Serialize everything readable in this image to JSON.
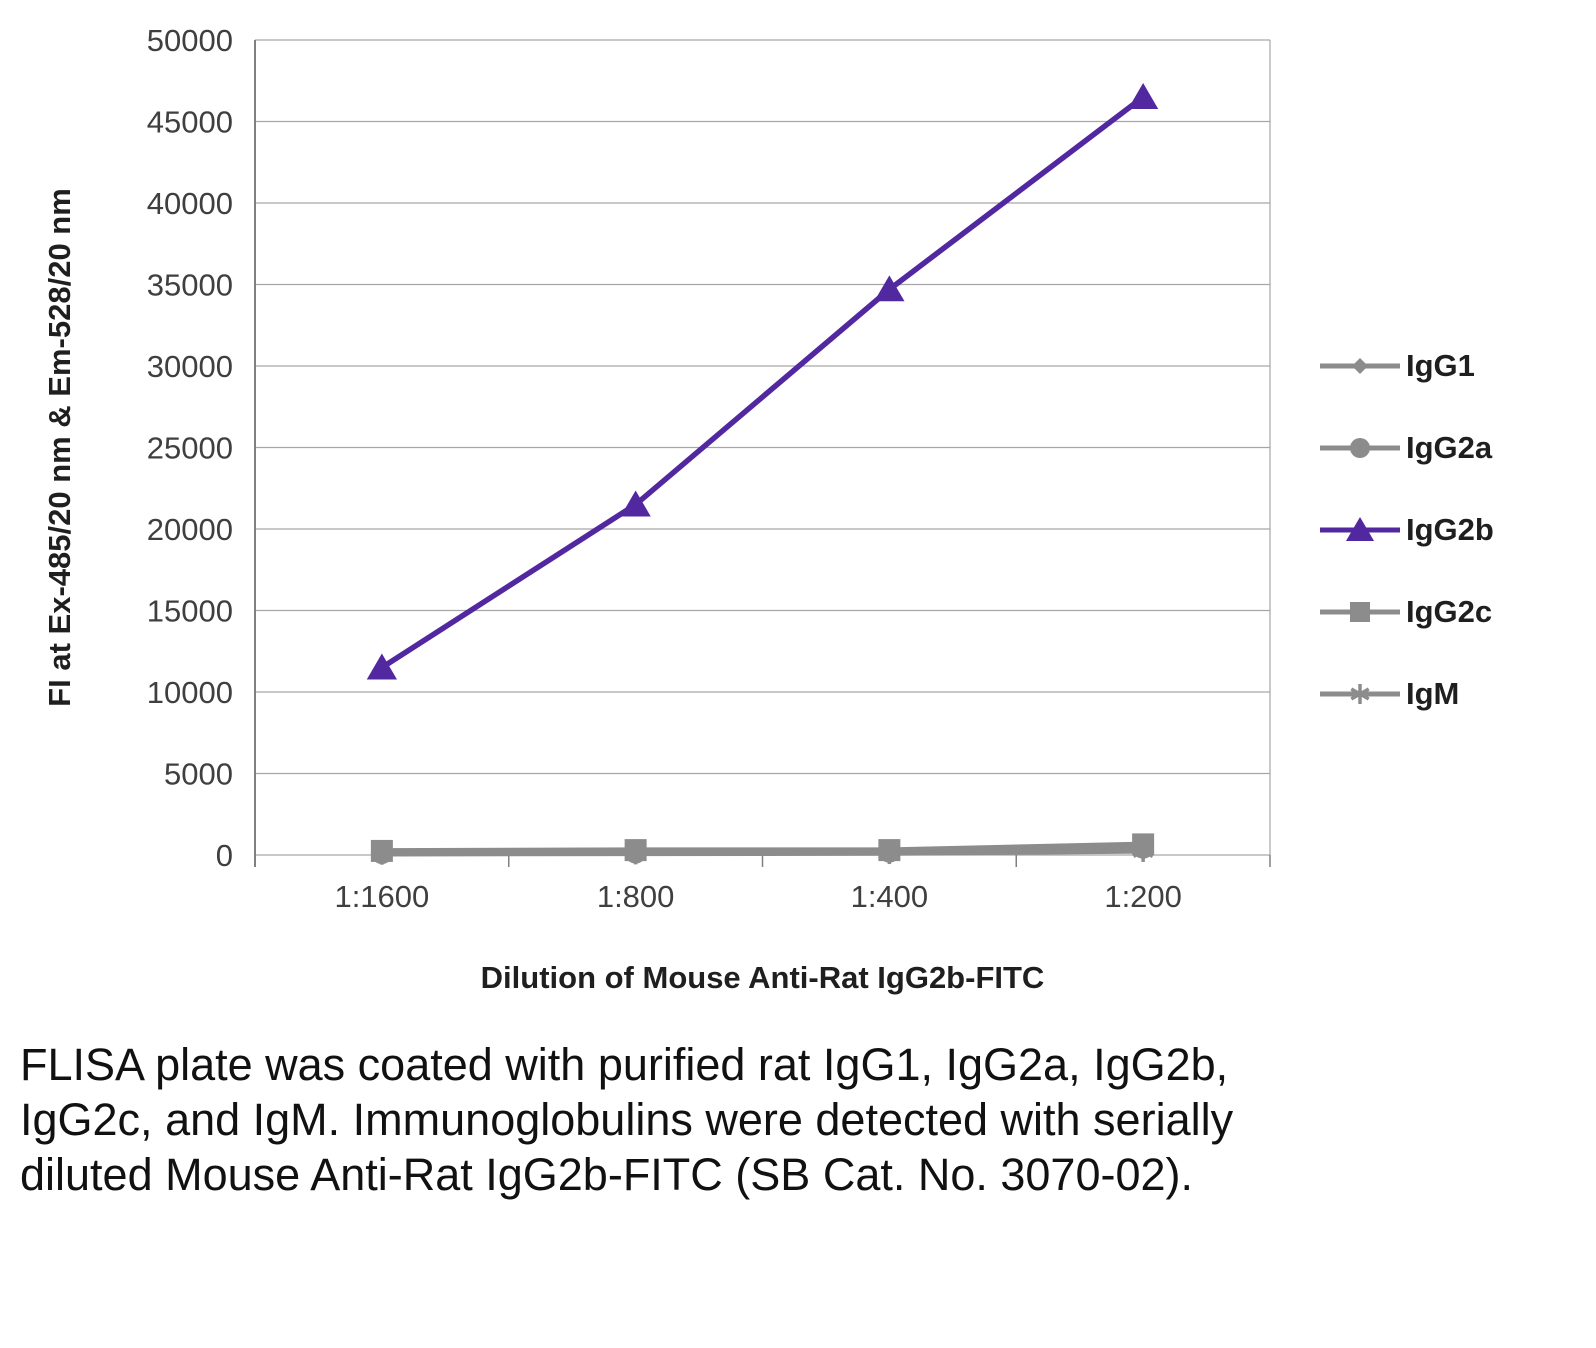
{
  "chart_data": {
    "type": "line",
    "categories": [
      "1:1600",
      "1:800",
      "1:400",
      "1:200"
    ],
    "series": [
      {
        "name": "IgG1",
        "marker": "diamond",
        "color": "#8c8c8c",
        "values": [
          100,
          120,
          150,
          350
        ]
      },
      {
        "name": "IgG2a",
        "marker": "circle",
        "color": "#8c8c8c",
        "values": [
          120,
          150,
          200,
          450
        ]
      },
      {
        "name": "IgG2b",
        "marker": "triangle",
        "color": "#5228a0",
        "values": [
          11500,
          21500,
          34700,
          46500
        ]
      },
      {
        "name": "IgG2c",
        "marker": "square",
        "color": "#8c8c8c",
        "values": [
          250,
          300,
          300,
          650
        ]
      },
      {
        "name": "IgM",
        "marker": "star",
        "color": "#8c8c8c",
        "values": [
          80,
          100,
          120,
          250
        ]
      }
    ],
    "title": "",
    "xlabel": "Dilution of Mouse Anti-Rat IgG2b-FITC",
    "ylabel": "FI at Ex-485/20 nm & Em-528/20 nm",
    "ylim": [
      0,
      50000
    ],
    "ytick_step": 5000,
    "grid": true,
    "legend_position": "right",
    "gridline_color": "#a6a6a6",
    "axis_color": "#808080"
  },
  "caption": "FLISA plate was coated with purified rat IgG1, IgG2a, IgG2b, IgG2c, and IgM.  Immunoglobulins were detected with serially diluted Mouse Anti-Rat IgG2b-FITC (SB Cat. No. 3070-02)."
}
